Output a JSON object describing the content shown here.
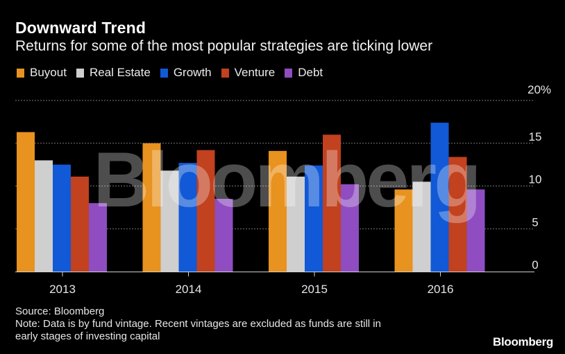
{
  "header": {
    "title": "Downward Trend",
    "subtitle": "Returns for some of the most popular strategies are ticking lower"
  },
  "chart_data": {
    "type": "bar",
    "categories": [
      "2013",
      "2014",
      "2015",
      "2016"
    ],
    "series": [
      {
        "name": "Buyout",
        "color": "#e8921f",
        "values": [
          16.3,
          15.0,
          14.1,
          9.6
        ]
      },
      {
        "name": "Real Estate",
        "color": "#cfcfcf",
        "values": [
          13.0,
          11.8,
          11.1,
          10.5
        ]
      },
      {
        "name": "Growth",
        "color": "#1159d6",
        "values": [
          12.5,
          12.7,
          12.4,
          17.4
        ]
      },
      {
        "name": "Venture",
        "color": "#c2411f",
        "values": [
          11.1,
          14.2,
          16.0,
          13.4
        ]
      },
      {
        "name": "Debt",
        "color": "#8f4dc1",
        "values": [
          8.0,
          8.5,
          10.2,
          9.6
        ]
      }
    ],
    "ylim": [
      0,
      20
    ],
    "yticks": [
      "0",
      "5",
      "10",
      "15",
      "20%"
    ],
    "ytick_values": [
      0,
      5,
      10,
      15,
      20
    ],
    "grid": true,
    "legend_position": "top-left"
  },
  "watermark": "Bloomberg",
  "footer": {
    "source": "Source: Bloomberg",
    "note_line1": "Note: Data is by fund vintage. Recent vintages are excluded as funds are still in",
    "note_line2": "early stages of investing capital"
  },
  "brand": "Bloomberg"
}
